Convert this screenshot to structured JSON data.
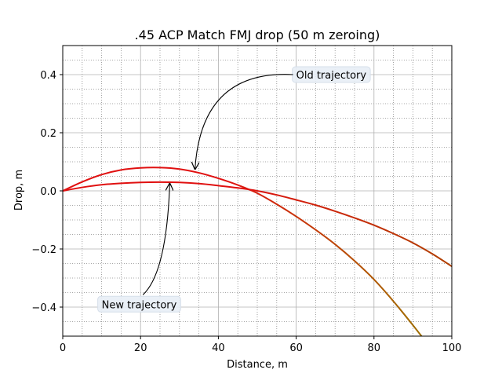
{
  "chart_data": {
    "type": "line",
    "title": ".45 ACP Match FMJ drop (50 m zeroing)",
    "xlabel": "Distance, m",
    "ylabel": "Drop, m",
    "xlim": [
      0,
      100
    ],
    "ylim": [
      -0.5,
      0.5
    ],
    "x_ticks": [
      0,
      20,
      40,
      60,
      80,
      100
    ],
    "y_ticks": [
      -0.4,
      -0.2,
      0.0,
      0.2,
      0.4
    ],
    "x_tick_labels": [
      "0",
      "20",
      "40",
      "60",
      "80",
      "100"
    ],
    "y_tick_labels": [
      "−0.4",
      "−0.2",
      "0.0",
      "0.2",
      "0.4"
    ],
    "grid": {
      "major": true,
      "minor": true
    },
    "series": [
      {
        "color_start": "#e01010",
        "color_end": "#a07000",
        "x": [
          0,
          5,
          10,
          15,
          20,
          25,
          30,
          35,
          40,
          45,
          50,
          55,
          60,
          65,
          70,
          75,
          80,
          85,
          90,
          92.5
        ],
        "y": [
          0.0,
          0.031,
          0.056,
          0.072,
          0.079,
          0.08,
          0.075,
          0.062,
          0.043,
          0.02,
          -0.008,
          -0.046,
          -0.088,
          -0.134,
          -0.184,
          -0.241,
          -0.305,
          -0.38,
          -0.462,
          -0.505
        ]
      },
      {
        "color_start": "#e01010",
        "color_end": "#b04000",
        "x": [
          0,
          5,
          10,
          15,
          20,
          25,
          30,
          35,
          40,
          45,
          50,
          55,
          60,
          65,
          70,
          75,
          80,
          85,
          90,
          95,
          100
        ],
        "y": [
          0.0,
          0.012,
          0.021,
          0.026,
          0.029,
          0.03,
          0.029,
          0.025,
          0.018,
          0.01,
          0.0,
          -0.014,
          -0.031,
          -0.049,
          -0.07,
          -0.093,
          -0.118,
          -0.147,
          -0.179,
          -0.217,
          -0.26
        ]
      }
    ],
    "annotations": [
      {
        "text": "Old trajectory",
        "text_x": 60,
        "text_y": 0.4,
        "point_x": 34,
        "point_y": 0.075
      },
      {
        "text": "New trajectory",
        "text_x": 10,
        "text_y": -0.39,
        "point_x": 27.5,
        "point_y": 0.025
      }
    ]
  }
}
